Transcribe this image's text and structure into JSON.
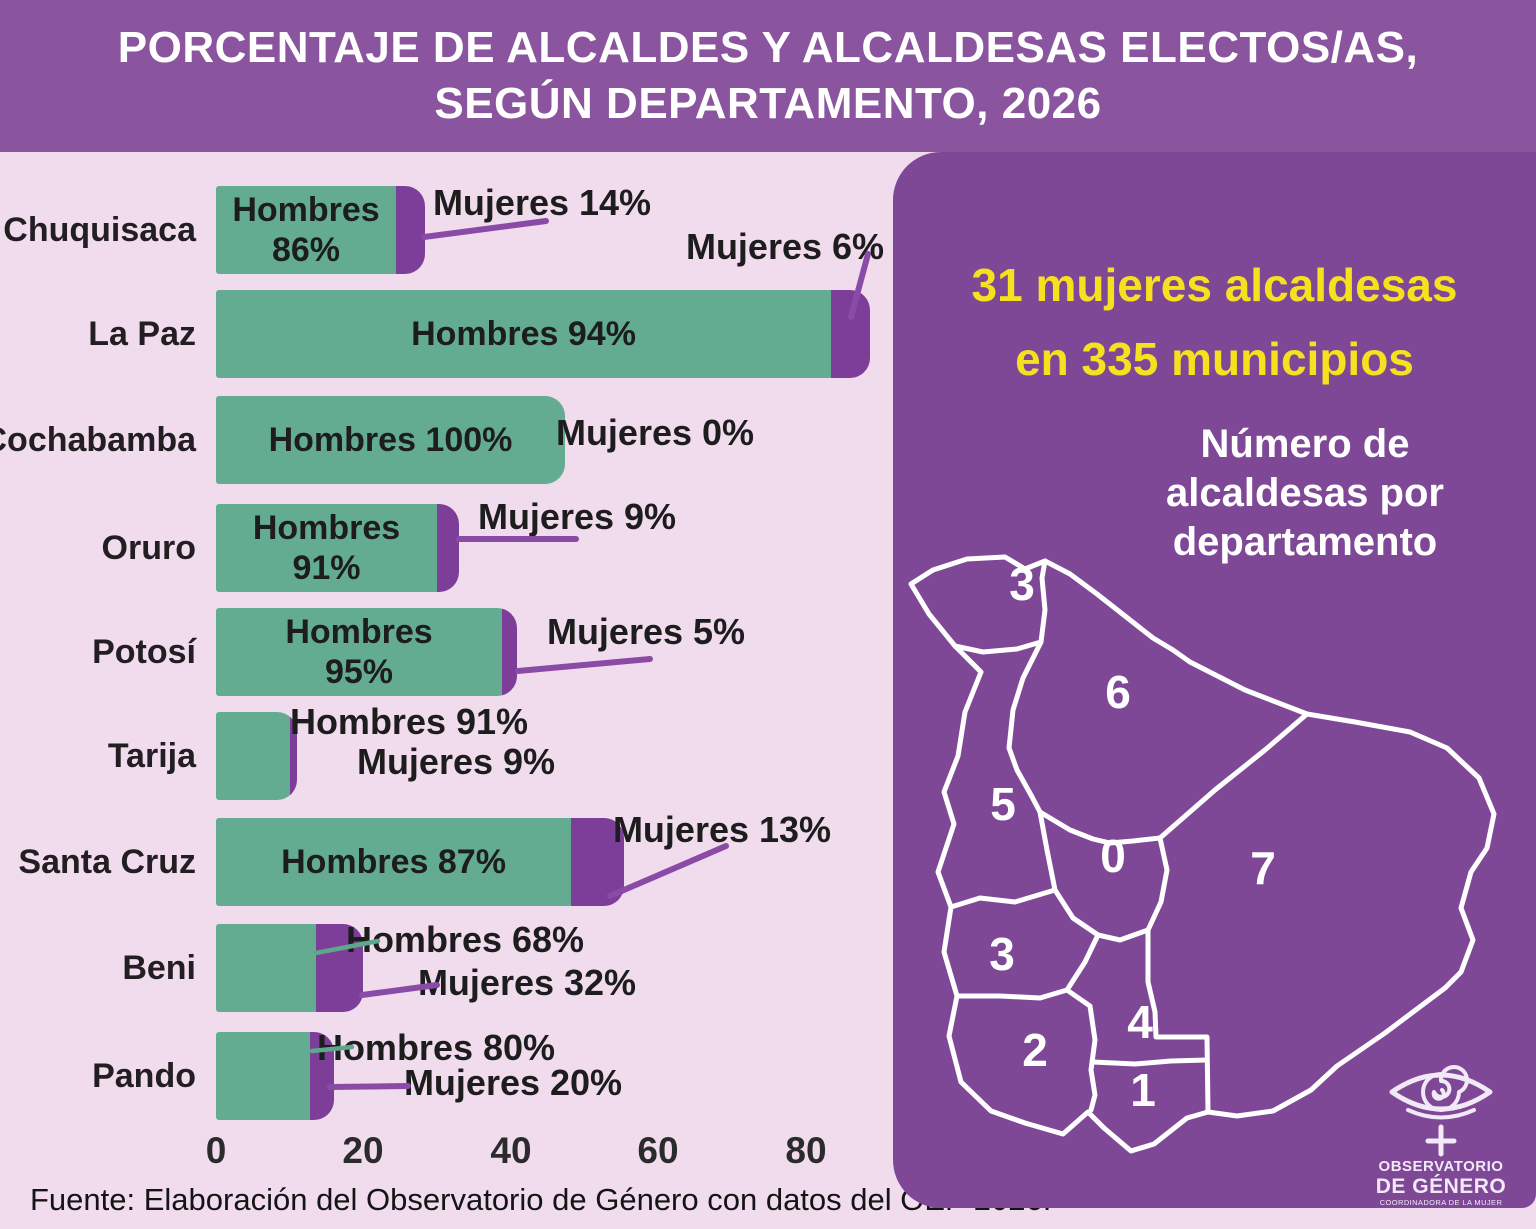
{
  "header": {
    "title_line1": "PORCENTAJE DE ALCALDES Y ALCALDESAS ELECTOS/AS,",
    "title_line2": "SEGÚN DEPARTAMENTO, 2026"
  },
  "chart_data": {
    "type": "bar",
    "orientation": "horizontal",
    "series": [
      {
        "name": "Hombres",
        "color": "#63ac91"
      },
      {
        "name": "Mujeres",
        "color": "#7d3e99"
      }
    ],
    "x_ticks": [
      "0",
      "20",
      "40",
      "60",
      "80"
    ],
    "xlim": [
      0,
      93
    ],
    "axis_note": "bar length = number of municipalities per department",
    "rows": [
      {
        "department": "Chuquisaca",
        "hombres_pct": 86,
        "mujeres_pct": 14,
        "bar_length_axis_units": 28.5,
        "bar_label_line1": "Hombres",
        "bar_label_line2": "86%",
        "mujeres_float": "Mujeres 14%"
      },
      {
        "department": "La Paz",
        "hombres_pct": 94,
        "mujeres_pct": 6,
        "bar_length_axis_units": 89,
        "bar_label_line1": "Hombres 94%",
        "bar_label_line2": "",
        "mujeres_float": "Mujeres 6%"
      },
      {
        "department": "Cochabamba",
        "hombres_pct": 100,
        "mujeres_pct": 0,
        "bar_length_axis_units": 47.5,
        "bar_label_line1": "Hombres 100%",
        "bar_label_line2": "",
        "mujeres_float": "Mujeres 0%"
      },
      {
        "department": "Oruro",
        "hombres_pct": 91,
        "mujeres_pct": 9,
        "bar_length_axis_units": 33,
        "bar_label_line1": "Hombres",
        "bar_label_line2": "91%",
        "mujeres_float": "Mujeres 9%"
      },
      {
        "department": "Potosí",
        "hombres_pct": 95,
        "mujeres_pct": 5,
        "bar_length_axis_units": 41,
        "bar_label_line1": "Hombres",
        "bar_label_line2": "95%",
        "mujeres_float": "Mujeres 5%"
      },
      {
        "department": "Tarija",
        "hombres_pct": 91,
        "mujeres_pct": 9,
        "bar_length_axis_units": 11,
        "bar_label_line1": "",
        "bar_label_line2": "",
        "hombres_float": "Hombres 91%",
        "mujeres_float": "Mujeres 9%"
      },
      {
        "department": "Santa Cruz",
        "hombres_pct": 87,
        "mujeres_pct": 13,
        "bar_length_axis_units": 55.5,
        "bar_label_line1": "Hombres 87%",
        "bar_label_line2": "",
        "mujeres_float": "Mujeres 13%"
      },
      {
        "department": "Beni",
        "hombres_pct": 68,
        "mujeres_pct": 32,
        "bar_length_axis_units": 20,
        "bar_label_line1": "",
        "bar_label_line2": "",
        "hombres_float": "Hombres 68%",
        "mujeres_float": "Mujeres 32%"
      },
      {
        "department": "Pando",
        "hombres_pct": 80,
        "mujeres_pct": 20,
        "bar_length_axis_units": 16,
        "bar_label_line1": "",
        "bar_label_line2": "",
        "hombres_float": "Hombres 80%",
        "mujeres_float": "Mujeres 20%"
      }
    ]
  },
  "panel": {
    "headline_line1": "31 mujeres alcaldesas",
    "headline_line2": "en 335 municipios",
    "map_title_line1": "Número de",
    "map_title_line2": "alcaldesas por",
    "map_title_line3": "departamento",
    "map_numbers": {
      "pando": "3",
      "beni": "6",
      "la_paz": "5",
      "cochabamba": "0",
      "santa_cruz": "7",
      "oruro": "3",
      "potosi": "2",
      "chuquisaca": "4",
      "tarija": "1"
    }
  },
  "logo": {
    "line1": "OBSERVATORIO",
    "line2": "DE GÉNERO",
    "line3": "COORDINADORA DE LA MUJER"
  },
  "footer": {
    "source": "Fuente: Elaboración del Observatorio de Género con datos del OEP 2026."
  },
  "colors": {
    "background_pink": "#f1dcee",
    "header_purple": "#8a559e",
    "panel_purple": "#7f4897",
    "bar_green": "#63ac91",
    "bar_purple": "#7d3e99",
    "headline_yellow": "#f6e11e",
    "connector_purple": "#8a4ba6",
    "connector_green": "#5da88c"
  }
}
